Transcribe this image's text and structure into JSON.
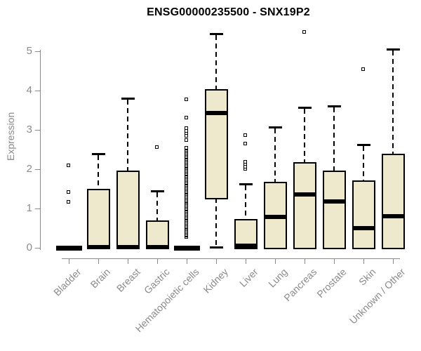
{
  "colors": {
    "background": "#ffffff",
    "box_fill": "#EEE8CD",
    "line": "#000000",
    "axis": "#8a8a8a",
    "text": "#8a8a8a",
    "title": "#000000"
  },
  "chart_data": {
    "type": "boxplot",
    "title": "ENSG00000235500 - SNX19P2",
    "xlabel": "",
    "ylabel": "Expression",
    "ylim": [
      0,
      5.6
    ],
    "y_ticks": [
      0,
      1,
      2,
      3,
      4,
      5
    ],
    "grid": false,
    "legend": false,
    "categories": [
      "Bladder",
      "Brain",
      "Breast",
      "Gastric",
      "Hematopoietic cells",
      "Kidney",
      "Liver",
      "Lung",
      "Pancreas",
      "Prostate",
      "Skin",
      "Unknown / Other"
    ],
    "series": [
      {
        "name": "Bladder",
        "low": 0,
        "q1": 0,
        "median": 0,
        "q3": 0,
        "high": 0,
        "outliers": [
          1.17,
          1.42,
          2.1
        ]
      },
      {
        "name": "Brain",
        "low": 0,
        "q1": 0,
        "median": 0.02,
        "q3": 1.5,
        "high": 2.4,
        "outliers": []
      },
      {
        "name": "Breast",
        "low": 0,
        "q1": 0,
        "median": 0.02,
        "q3": 1.97,
        "high": 3.8,
        "outliers": []
      },
      {
        "name": "Gastric",
        "low": 0,
        "q1": 0,
        "median": 0.02,
        "q3": 0.7,
        "high": 1.45,
        "outliers": [
          2.58
        ]
      },
      {
        "name": "Hematopoietic cells",
        "low": 0,
        "q1": 0,
        "median": 0,
        "q3": 0,
        "high": 0,
        "outliers": [
          2.75,
          2.86,
          2.92,
          2.98,
          3.05,
          3.33,
          3.78
        ],
        "outlier_column": {
          "from": 0.28,
          "to": 2.56,
          "count": 70
        }
      },
      {
        "name": "Kidney",
        "low": 0.02,
        "q1": 1.27,
        "median": 3.43,
        "q3": 4.03,
        "high": 5.45,
        "outliers": []
      },
      {
        "name": "Liver",
        "low": 0,
        "q1": 0,
        "median": 0.05,
        "q3": 0.73,
        "high": 1.62,
        "outliers": [
          2.02,
          2.08,
          2.15,
          2.2,
          2.66,
          2.87
        ]
      },
      {
        "name": "Lung",
        "low": 0,
        "q1": 0,
        "median": 0.78,
        "q3": 1.68,
        "high": 3.08,
        "outliers": []
      },
      {
        "name": "Pancreas",
        "low": 0,
        "q1": 0,
        "median": 1.35,
        "q3": 2.18,
        "high": 3.57,
        "outliers": [
          5.5
        ]
      },
      {
        "name": "Prostate",
        "low": 0,
        "q1": 0,
        "median": 1.17,
        "q3": 1.97,
        "high": 3.6,
        "outliers": []
      },
      {
        "name": "Skin",
        "low": 0,
        "q1": 0,
        "median": 0.5,
        "q3": 1.72,
        "high": 2.63,
        "outliers": [
          4.55
        ]
      },
      {
        "name": "Unknown / Other",
        "low": 0,
        "q1": 0,
        "median": 0.8,
        "q3": 2.4,
        "high": 5.05,
        "outliers": []
      }
    ]
  }
}
